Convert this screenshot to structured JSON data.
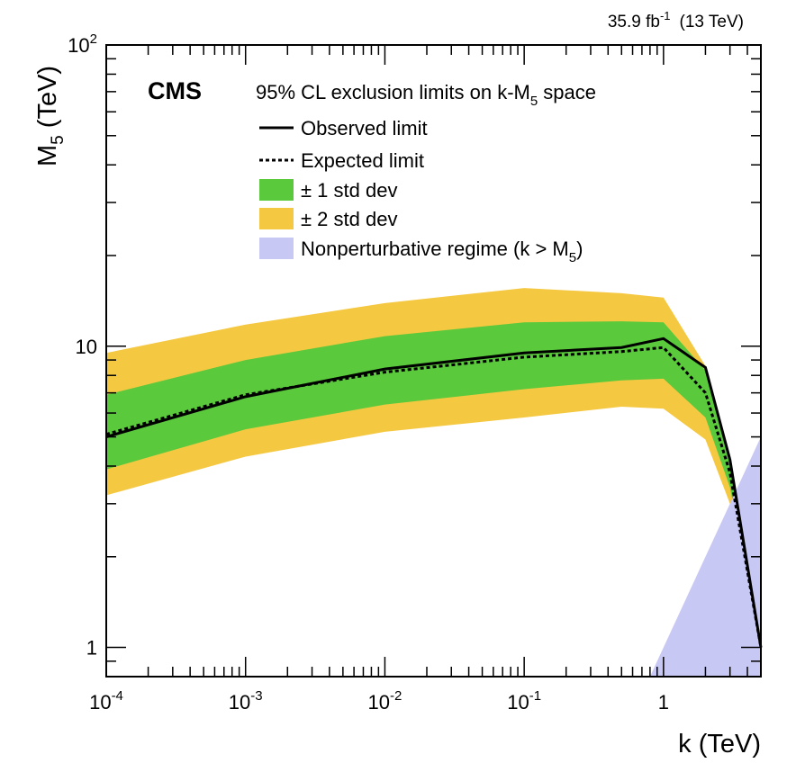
{
  "chart_data": {
    "type": "line",
    "experiment": "CMS",
    "lumi_label": "35.9 fb",
    "lumi_exponent": "-1",
    "energy_label": "(13 TeV)",
    "title": "95% CL exclusion limits on k-M",
    "title_subscript": "5",
    "title_suffix": " space",
    "xlabel": "k (TeV)",
    "ylabel_main": "M",
    "ylabel_sub": "5",
    "ylabel_suffix": " (TeV)",
    "x_scale": "log",
    "y_scale": "log",
    "xlim": [
      0.0001,
      5
    ],
    "ylim": [
      0.8,
      100
    ],
    "x_ticks": [
      {
        "value": 0.0001,
        "base": "10",
        "exp": "-4"
      },
      {
        "value": 0.001,
        "base": "10",
        "exp": "-3"
      },
      {
        "value": 0.01,
        "base": "10",
        "exp": "-2"
      },
      {
        "value": 0.1,
        "base": "10",
        "exp": "-1"
      },
      {
        "value": 1,
        "base": "1",
        "exp": ""
      }
    ],
    "y_ticks": [
      {
        "value": 1,
        "base": "1",
        "exp": ""
      },
      {
        "value": 10,
        "base": "10",
        "exp": ""
      },
      {
        "value": 100,
        "base": "10",
        "exp": "2"
      }
    ],
    "legend": {
      "placement": "top-center",
      "observed": "Observed limit",
      "expected": "Expected limit",
      "one_sigma": "± 1 std dev",
      "two_sigma": "± 2 std dev",
      "nonpert_main": "Nonperturbative regime (k > M",
      "nonpert_sub": "5",
      "nonpert_close": ")"
    },
    "colors": {
      "one_sigma": "#5ac93c",
      "two_sigma": "#f5c842",
      "nonpert": "#c8c8f5",
      "line": "#000000"
    },
    "x": [
      0.0001,
      0.001,
      0.01,
      0.1,
      0.5,
      1,
      2,
      3,
      5
    ],
    "observed": [
      5.0,
      6.8,
      8.4,
      9.5,
      9.9,
      10.6,
      8.5,
      4.2,
      1.0
    ],
    "expected": [
      5.1,
      6.9,
      8.2,
      9.2,
      9.6,
      9.9,
      7.0,
      3.8,
      1.0
    ],
    "one_sigma_low": [
      3.9,
      5.3,
      6.4,
      7.2,
      7.7,
      7.8,
      5.8,
      3.4,
      1.0
    ],
    "one_sigma_high": [
      6.9,
      9.0,
      10.8,
      12.0,
      12.1,
      12.0,
      8.3,
      4.2,
      1.0
    ],
    "two_sigma_low": [
      3.2,
      4.3,
      5.2,
      5.8,
      6.3,
      6.2,
      4.9,
      3.0,
      1.0
    ],
    "two_sigma_high": [
      9.5,
      11.8,
      13.9,
      15.6,
      15.0,
      14.5,
      8.6,
      4.3,
      1.0
    ],
    "nonperturbative_region": {
      "x": [
        0.8,
        5,
        5
      ],
      "y": [
        0.8,
        0.8,
        5
      ]
    }
  }
}
